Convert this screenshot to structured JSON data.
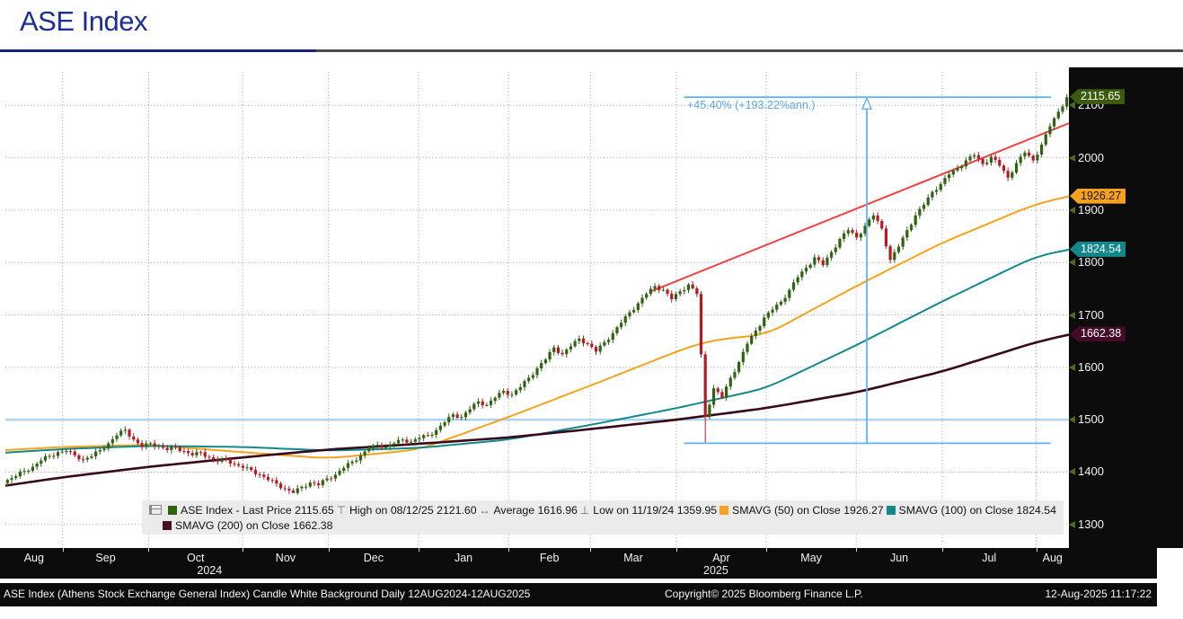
{
  "header": {
    "title": "ASE Index"
  },
  "colors": {
    "up": "#2f6312",
    "down": "#b51a23",
    "sma50": "#f7a21f",
    "sma100": "#11898c",
    "sma200": "#38091c",
    "trend": "#f54040",
    "measure": "#66b1ee",
    "level": "#abd4f3",
    "annotation_text": "#5ba8e8",
    "title": "#1b2f96",
    "axis_bg": "#0c0c0c",
    "axis_text": "#f2f2f2",
    "legend_bg": "#ebebeb"
  },
  "legend": {
    "row1": [
      {
        "swatch": "#2f6312",
        "label": "ASE Index - Last Price 2115.65"
      },
      {
        "glyph": "⊤",
        "label": "High on 08/12/25 2121.60"
      },
      {
        "glyph": "↔",
        "label": "Average 1616.96"
      },
      {
        "glyph": "⊥",
        "label": "Low on 11/19/24 1359.95"
      },
      {
        "swatch": "#f7a21f",
        "label": "SMAVG (50)  on Close 1926.27"
      },
      {
        "swatch": "#11898c",
        "label": "SMAVG (100)  on Close 1824.54"
      }
    ],
    "row2": [
      {
        "swatch": "#4a0d28",
        "label": "SMAVG (200)  on Close 1662.38"
      }
    ]
  },
  "axis": {
    "badges": [
      {
        "label": "2115.65",
        "value": 2115.65,
        "bg": "#3a5b0c",
        "fg": "#ffffff"
      },
      {
        "label": "1926.27",
        "value": 1926.27,
        "bg": "#f7a21f",
        "fg": "#161616"
      },
      {
        "label": "1824.54",
        "value": 1824.54,
        "bg": "#11898c",
        "fg": "#ffffff"
      },
      {
        "label": "1662.38",
        "value": 1662.38,
        "bg": "#440a26",
        "fg": "#ffffff"
      }
    ]
  },
  "chart_data": {
    "type": "candlestick",
    "title": "ASE Index",
    "period": "Daily 12AUG2024-12AUG2025",
    "grid": true,
    "y_axis": {
      "ticks": [
        2100,
        2000,
        1900,
        1800,
        1700,
        1600,
        1500,
        1400,
        1300
      ],
      "ylim": [
        1300,
        2100
      ],
      "scale": {
        "v_top": 2164,
        "v_bottom": 1255
      }
    },
    "x_axis": {
      "months": [
        "Aug",
        "Sep",
        "Oct",
        "Nov",
        "Dec",
        "Jan",
        "Feb",
        "Mar",
        "Apr",
        "May",
        "Jun",
        "Jul",
        "Aug"
      ],
      "boundaries": [
        0.0538,
        0.1346,
        0.2231,
        0.3038,
        0.3885,
        0.4731,
        0.55,
        0.6308,
        0.7154,
        0.8,
        0.8808,
        0.9692
      ],
      "years": [
        {
          "label": "2024",
          "t": 0.192
        },
        {
          "label": "2025",
          "t": 0.668
        }
      ]
    },
    "stats": {
      "last_price": 2115.65,
      "high": {
        "date": "08/12/25",
        "value": 2121.6
      },
      "average": 1616.96,
      "low": {
        "date": "11/19/24",
        "value": 1359.95
      },
      "sma50_close": 1926.27,
      "sma100_close": 1824.54,
      "sma200_close": 1662.38
    },
    "candles": {
      "closes": [
        1385,
        1392,
        1402,
        1410,
        1422,
        1431,
        1438,
        1440,
        1432,
        1424,
        1430,
        1442,
        1455,
        1470,
        1481,
        1462,
        1448,
        1455,
        1450,
        1442,
        1448,
        1440,
        1432,
        1438,
        1428,
        1420,
        1425,
        1415,
        1408,
        1404,
        1395,
        1385,
        1378,
        1368,
        1360,
        1372,
        1380,
        1375,
        1388,
        1395,
        1408,
        1420,
        1432,
        1445,
        1452,
        1448,
        1455,
        1462,
        1458,
        1465,
        1470,
        1480,
        1495,
        1510,
        1505,
        1520,
        1535,
        1528,
        1542,
        1555,
        1548,
        1562,
        1580,
        1598,
        1615,
        1638,
        1625,
        1640,
        1655,
        1645,
        1630,
        1648,
        1665,
        1685,
        1705,
        1722,
        1740,
        1755,
        1748,
        1730,
        1745,
        1758,
        1740,
        1505,
        1560,
        1542,
        1580,
        1610,
        1645,
        1670,
        1695,
        1710,
        1725,
        1748,
        1772,
        1790,
        1810,
        1795,
        1820,
        1845,
        1862,
        1848,
        1870,
        1890,
        1865,
        1805,
        1830,
        1862,
        1890,
        1910,
        1935,
        1950,
        1968,
        1980,
        1995,
        2005,
        1988,
        2002,
        1985,
        1962,
        1990,
        2010,
        1995,
        2025,
        2060,
        2088,
        2115.65
      ],
      "interpolate_midpoints": true,
      "overrides": {
        "68": {
          "low": 1359.95
        },
        "166": {
          "low": 1455
        },
        "252": {
          "high": 2121.6,
          "close": 2115.65
        }
      }
    },
    "sma_lines": [
      {
        "name": "SMAVG (50) on Close",
        "color_key": "sma50",
        "width": 2,
        "t": [
          0,
          0.054,
          0.135,
          0.223,
          0.304,
          0.389,
          0.473,
          0.55,
          0.631,
          0.66,
          0.7,
          0.715,
          0.8,
          0.881,
          0.969,
          1
        ],
        "v": [
          1442,
          1448,
          1452,
          1438,
          1426,
          1443,
          1505,
          1565,
          1630,
          1650,
          1660,
          1662,
          1755,
          1838,
          1912,
          1926.27
        ]
      },
      {
        "name": "SMAVG (100) on Close",
        "color_key": "sma100",
        "width": 2,
        "t": [
          0,
          0.054,
          0.135,
          0.223,
          0.304,
          0.389,
          0.473,
          0.55,
          0.631,
          0.715,
          0.8,
          0.881,
          0.969,
          1
        ],
        "v": [
          1437,
          1444,
          1450,
          1448,
          1441,
          1446,
          1462,
          1490,
          1522,
          1560,
          1642,
          1726,
          1812,
          1824.54
        ]
      },
      {
        "name": "SMAVG (200) on Close",
        "color_key": "sma200",
        "width": 2.6,
        "t": [
          0,
          0.054,
          0.135,
          0.223,
          0.304,
          0.389,
          0.473,
          0.55,
          0.631,
          0.715,
          0.8,
          0.881,
          0.969,
          1
        ],
        "v": [
          1374,
          1390,
          1410,
          1428,
          1443,
          1454,
          1466,
          1482,
          1500,
          1522,
          1552,
          1592,
          1648,
          1662.38
        ]
      }
    ],
    "trend_line": {
      "t1": 0.607,
      "v1": 1745,
      "t2": 1.0,
      "v2": 2066
    },
    "annotations": {
      "level_line": {
        "value": 1500
      },
      "measure": {
        "t1": 0.638,
        "t2": 0.983,
        "v_low": 1455,
        "v_high": 2115.65,
        "arrow_t": 0.81,
        "label": "+45.40% (+193.22%ann.)",
        "label_t": 0.641,
        "label_v": 2094
      }
    }
  },
  "footer": {
    "left": "ASE Index (Athens Stock Exchange General Index) Candle White Background  Daily 12AUG2024-12AUG2025",
    "copyright": "Copyright© 2025 Bloomberg Finance L.P.",
    "timestamp": "12-Aug-2025 11:17:22"
  }
}
